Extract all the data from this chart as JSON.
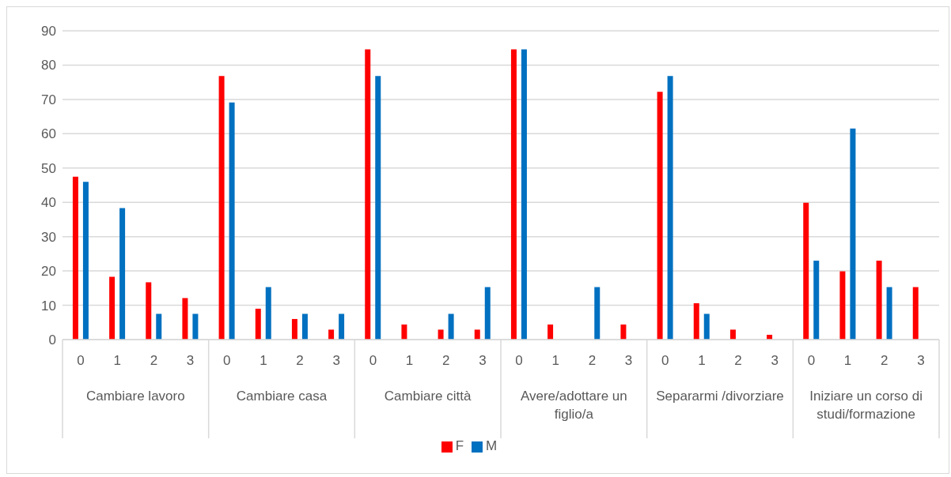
{
  "chart_data": {
    "type": "bar",
    "categories": [
      "0",
      "1",
      "2",
      "3",
      "0",
      "1",
      "2",
      "3",
      "0",
      "1",
      "2",
      "3",
      "0",
      "1",
      "2",
      "3",
      "0",
      "1",
      "2",
      "3",
      "0",
      "1",
      "2",
      "3"
    ],
    "annotations": [
      "Cambiare lavoro",
      "Cambiare casa",
      "Cambiare città",
      "Avere/adottare un figlio/a",
      "Separarmi /divorziare",
      "Iniziare un corso di studi/formazione"
    ],
    "series": [
      {
        "name": "F",
        "color": "#ff0000",
        "values": [
          47.5,
          18.3,
          16.7,
          12.1,
          76.8,
          9.0,
          6.0,
          2.9,
          84.6,
          4.4,
          2.9,
          2.9,
          84.6,
          4.4,
          0,
          4.4,
          72.2,
          10.6,
          2.9,
          1.4,
          39.9,
          19.9,
          23.0,
          15.3
        ]
      },
      {
        "name": "M",
        "color": "#0070c0",
        "values": [
          46.0,
          38.3,
          7.5,
          7.5,
          69.1,
          15.3,
          7.5,
          7.5,
          76.8,
          0,
          7.5,
          15.3,
          84.6,
          0,
          15.3,
          0,
          76.8,
          7.5,
          0,
          0,
          23.0,
          61.5,
          15.3,
          0
        ]
      }
    ],
    "ylim": [
      0,
      90
    ],
    "yticks": [
      0,
      10,
      20,
      30,
      40,
      50,
      60,
      70,
      80,
      90
    ],
    "grid": "y",
    "legend": "bottom"
  }
}
